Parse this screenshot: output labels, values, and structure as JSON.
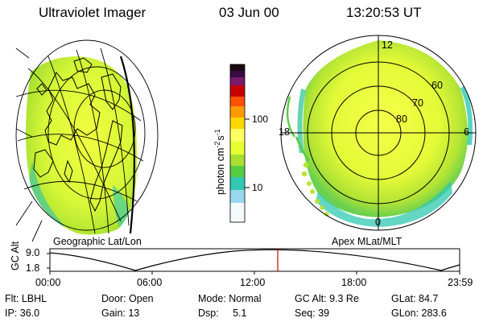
{
  "header": {
    "instrument": "Ultraviolet Imager",
    "date": "03 Jun 00",
    "time": "13:20:53 UT"
  },
  "colorbar": {
    "unit_label": "photon cm",
    "unit_exp1": "-2",
    "unit_mid": "s",
    "unit_exp2": "-1",
    "tick_100": "100",
    "tick_10": "10",
    "colors": [
      "#1a0a10",
      "#3a0a40",
      "#7a1a6a",
      "#c80000",
      "#ff5000",
      "#ff9a00",
      "#ffd800",
      "#ffff60",
      "#e6ff30",
      "#a8e030",
      "#58cc40",
      "#30c8b0",
      "#9ad8f0",
      "#ffffff"
    ]
  },
  "geo_map": {
    "label": "Geographic Lat/Lon"
  },
  "polar_map": {
    "label": "Apex MLat/MLT",
    "mlt_12": "12",
    "mlt_18": "18",
    "mlt_6": "6",
    "mlt_0": "0",
    "lat_60": "60",
    "lat_70": "70",
    "lat_80": "80"
  },
  "altitude_plot": {
    "ylabel": "GC Alt",
    "y_top": "9.0",
    "y_bottom": "1.8",
    "x_ticks": [
      "00:00",
      "06:00",
      "12:00",
      "18:00",
      "23:59"
    ],
    "current_time_fraction": 0.556
  },
  "status": {
    "row1": {
      "flt": "Flt: LBHL",
      "door": "Door: Open",
      "mode": "Mode: Normal",
      "gc_alt": "GC Alt: 9.3 Re",
      "glat": "GLat:  84.7"
    },
    "row2": {
      "ip": "IP: 36.0",
      "gain": "Gain: 13",
      "dsp": "Dsp:     5.1",
      "seq": "Seq: 39",
      "glon": "GLon: 283.6"
    }
  }
}
